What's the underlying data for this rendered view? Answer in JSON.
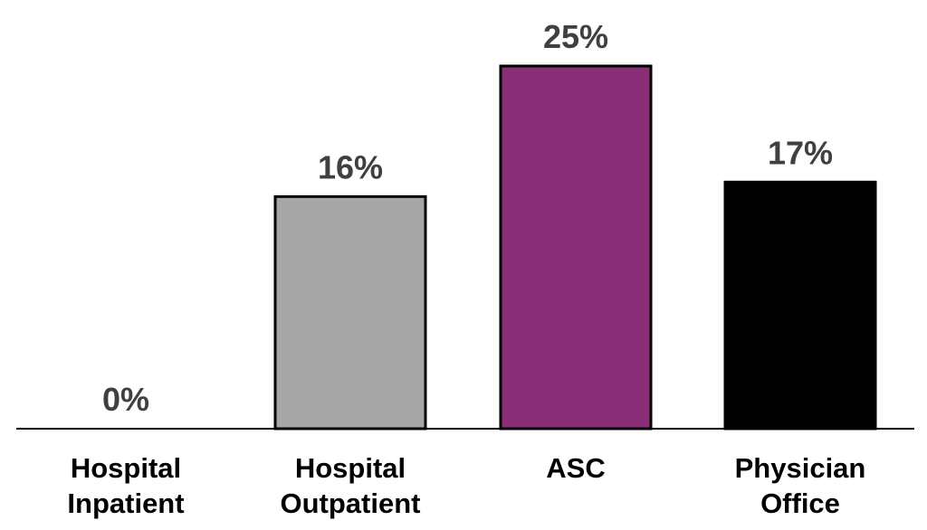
{
  "chart_data": {
    "type": "bar",
    "categories": [
      [
        "Hospital",
        "Inpatient"
      ],
      [
        "Hospital",
        "Outpatient"
      ],
      [
        "ASC"
      ],
      [
        "Physician",
        "Office"
      ]
    ],
    "values": [
      0,
      16,
      25,
      17
    ],
    "data_labels": [
      "0%",
      "16%",
      "25%",
      "17%"
    ],
    "colors": [
      "#ffffff",
      "#a6a6a6",
      "#8b2e78",
      "#000000"
    ],
    "title": "",
    "xlabel": "",
    "ylabel": "",
    "ylim": [
      0,
      25
    ],
    "grid": false,
    "legend": "none"
  }
}
